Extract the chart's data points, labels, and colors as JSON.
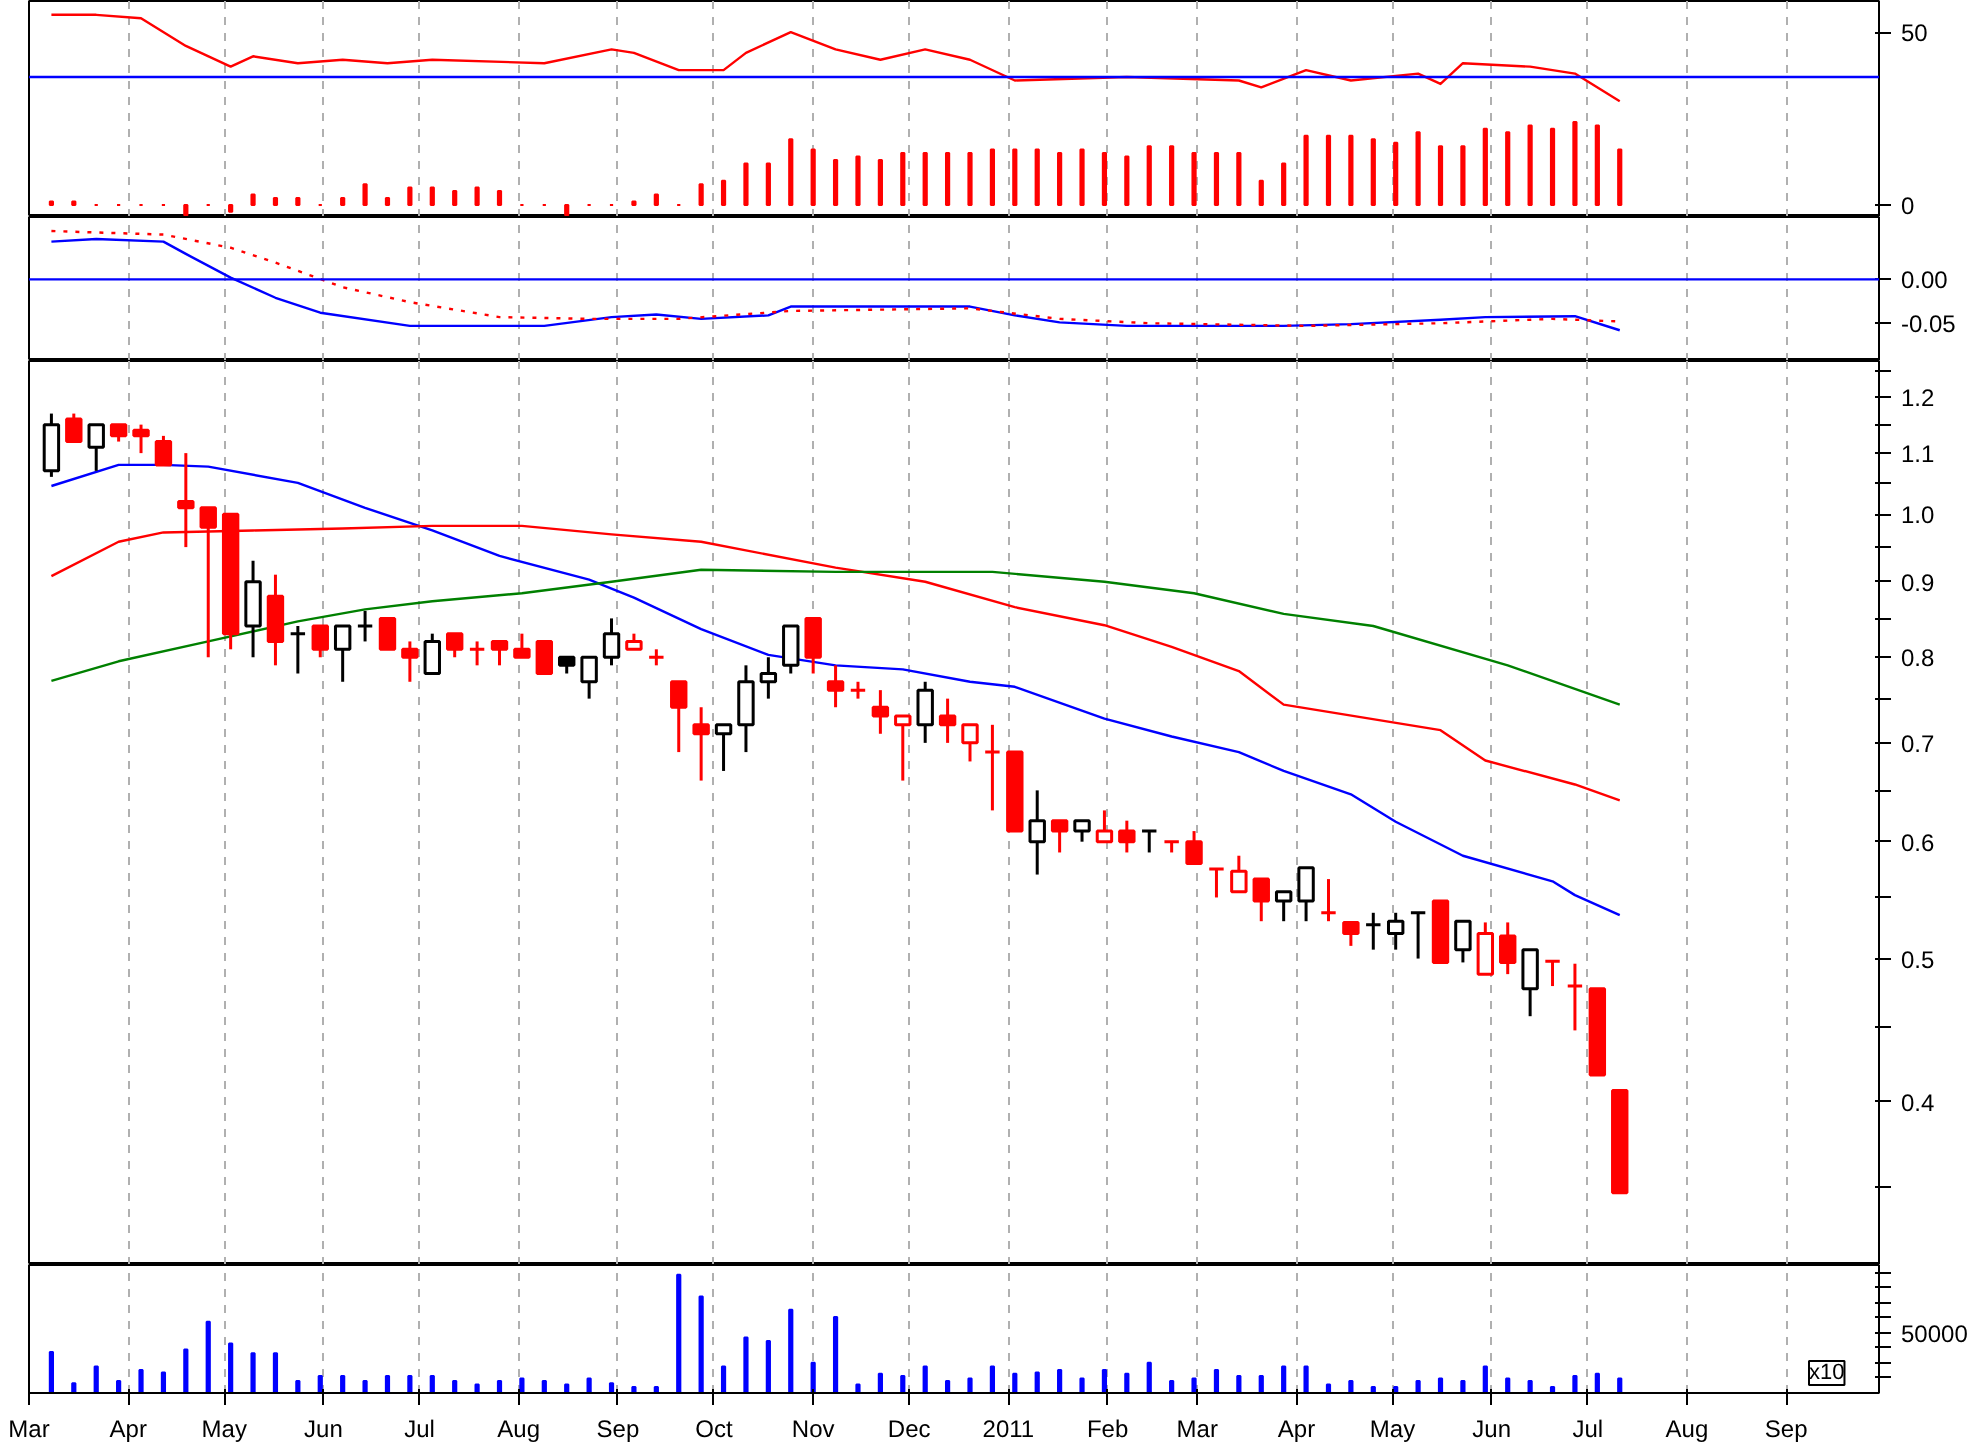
{
  "chart_data": [
    {
      "type": "bar",
      "x": [
        "2010-03-08",
        "2010-03-15",
        "2010-03-22",
        "2010-03-29",
        "2010-04-05",
        "2010-04-12",
        "2010-04-19",
        "2010-04-26",
        "2010-05-03",
        "2010-05-10",
        "2010-05-17",
        "2010-05-24",
        "2010-05-31",
        "2010-06-07",
        "2010-06-14",
        "2010-06-21",
        "2010-06-28",
        "2010-07-05",
        "2010-07-12",
        "2010-07-19",
        "2010-07-26",
        "2010-08-02",
        "2010-08-09",
        "2010-08-16",
        "2010-08-23",
        "2010-08-30",
        "2010-09-06",
        "2010-09-13",
        "2010-09-20",
        "2010-09-27",
        "2010-10-04",
        "2010-10-11",
        "2010-10-18",
        "2010-10-25",
        "2010-11-01",
        "2010-11-08",
        "2010-11-15",
        "2010-11-22",
        "2010-11-29",
        "2010-12-06",
        "2010-12-13",
        "2010-12-20",
        "2010-12-27",
        "2011-01-03",
        "2011-01-10",
        "2011-01-17",
        "2011-01-24",
        "2011-01-31",
        "2011-02-07",
        "2011-02-14",
        "2011-02-21",
        "2011-02-28",
        "2011-03-07",
        "2011-03-14",
        "2011-03-21",
        "2011-03-28",
        "2011-04-04",
        "2011-04-11",
        "2011-04-18",
        "2011-04-25",
        "2011-05-02",
        "2011-05-09",
        "2011-05-16",
        "2011-05-23",
        "2011-05-30",
        "2011-06-06",
        "2011-06-13",
        "2011-06-20",
        "2011-06-27",
        "2011-07-04",
        "2011-07-11"
      ],
      "series": [
        {
          "type": "bar",
          "color": "#ff0000",
          "values": [
            1,
            1,
            0,
            0,
            0,
            0,
            -3,
            0,
            -2,
            3,
            2,
            2,
            0,
            2,
            6,
            2,
            5,
            5,
            4,
            5,
            4,
            0,
            0,
            -3,
            0,
            0,
            1,
            3,
            0,
            6,
            7,
            12,
            12,
            19,
            16,
            13,
            14,
            13,
            15,
            15,
            15,
            15,
            16,
            16,
            16,
            15,
            16,
            15,
            14,
            17,
            17,
            15,
            15,
            15,
            7,
            12,
            20,
            20,
            20,
            19,
            18,
            21,
            17,
            17,
            22,
            21,
            23,
            22,
            24,
            23,
            16
          ]
        },
        {
          "type": "line",
          "color": "#ff0000",
          "x": [
            "2010-03-08",
            "2010-03-22",
            "2010-04-05",
            "2010-04-19",
            "2010-05-03",
            "2010-05-10",
            "2010-05-24",
            "2010-06-07",
            "2010-06-21",
            "2010-07-05",
            "2010-08-09",
            "2010-08-30",
            "2010-09-06",
            "2010-09-20",
            "2010-10-04",
            "2010-10-11",
            "2010-10-25",
            "2010-11-08",
            "2010-11-22",
            "2010-12-06",
            "2010-12-20",
            "2011-01-03",
            "2011-02-07",
            "2011-03-14",
            "2011-03-21",
            "2011-04-04",
            "2011-04-18",
            "2011-05-09",
            "2011-05-16",
            "2011-05-23",
            "2011-06-13",
            "2011-06-27",
            "2011-07-11"
          ],
          "values": [
            55,
            55,
            54,
            46,
            40,
            43,
            41,
            42,
            41,
            42,
            41,
            45,
            44,
            39,
            39,
            44,
            50,
            45,
            42,
            45,
            42,
            36,
            37,
            36,
            34,
            39,
            36,
            38,
            35,
            41,
            40,
            38,
            30
          ]
        }
      ],
      "ref_lines": [
        {
          "axis": "y",
          "value": 37,
          "color": "#0000ff"
        }
      ],
      "xlim": [
        "2010-03-01",
        "2011-09-30"
      ],
      "ylim": [
        -3.5,
        59
      ],
      "yticks": [
        0,
        50
      ],
      "xticks": [
        {
          "value": "2010-03-01",
          "label": null
        },
        {
          "value": "2010-04-01",
          "label": null
        },
        {
          "value": "2010-05-01",
          "label": null
        },
        {
          "value": "2010-06-01",
          "label": null
        },
        {
          "value": "2010-07-01",
          "label": null
        },
        {
          "value": "2010-08-01",
          "label": null
        },
        {
          "value": "2010-09-01",
          "label": null
        },
        {
          "value": "2010-10-01",
          "label": null
        },
        {
          "value": "2010-11-01",
          "label": null
        },
        {
          "value": "2010-12-01",
          "label": null
        },
        {
          "value": "2011-01-01",
          "label": null
        },
        {
          "value": "2011-02-01",
          "label": null
        },
        {
          "value": "2011-03-01",
          "label": null
        },
        {
          "value": "2011-04-01",
          "label": null
        },
        {
          "value": "2011-05-01",
          "label": null
        },
        {
          "value": "2011-06-01",
          "label": null
        },
        {
          "value": "2011-07-01",
          "label": null
        },
        {
          "value": "2011-08-01",
          "label": null
        },
        {
          "value": "2011-09-01",
          "label": null
        }
      ],
      "tick_labels": "y",
      "grid": "x"
    },
    {
      "type": "line",
      "series": [
        {
          "color": "#0000ff",
          "line_style": "solid",
          "x": [
            "2010-03-08",
            "2010-03-22",
            "2010-04-12",
            "2010-04-19",
            "2010-05-03",
            "2010-05-17",
            "2010-05-31",
            "2010-06-28",
            "2010-08-09",
            "2010-08-30",
            "2010-09-13",
            "2010-09-27",
            "2010-10-18",
            "2010-10-25",
            "2010-11-08",
            "2010-12-20",
            "2011-01-03",
            "2011-01-17",
            "2011-02-07",
            "2011-03-28",
            "2011-04-18",
            "2011-05-16",
            "2011-05-30",
            "2011-06-27",
            "2011-07-11"
          ],
          "values": [
            0.043,
            0.046,
            0.043,
            0.029,
            0.002,
            -0.021,
            -0.038,
            -0.053,
            -0.053,
            -0.043,
            -0.04,
            -0.045,
            -0.041,
            -0.031,
            -0.031,
            -0.031,
            -0.041,
            -0.049,
            -0.053,
            -0.053,
            -0.051,
            -0.046,
            -0.043,
            -0.042,
            -0.058
          ]
        },
        {
          "color": "#ff0000",
          "line_style": "dotted",
          "x": [
            "2010-03-08",
            "2010-04-12",
            "2010-05-03",
            "2010-05-17",
            "2010-06-07",
            "2010-06-28",
            "2010-07-26",
            "2010-08-23",
            "2010-09-20",
            "2010-10-25",
            "2010-12-20",
            "2011-01-17",
            "2011-02-14",
            "2011-04-04",
            "2011-05-16",
            "2011-06-20",
            "2011-07-11"
          ],
          "values": [
            0.055,
            0.051,
            0.036,
            0.019,
            -0.009,
            -0.026,
            -0.043,
            -0.045,
            -0.045,
            -0.036,
            -0.033,
            -0.045,
            -0.05,
            -0.053,
            -0.05,
            -0.045,
            -0.048
          ]
        }
      ],
      "ref_lines": [
        {
          "axis": "y",
          "value": 0,
          "color": "#0000ff"
        }
      ],
      "xlim": [
        "2010-03-01",
        "2011-09-30"
      ],
      "ylim": [
        -0.093,
        0.071
      ],
      "yticks": [
        {
          "value": 0,
          "label": "0.00"
        },
        {
          "value": -0.05,
          "label": "-0.05"
        }
      ],
      "xticks": [
        {
          "value": "2010-03-01",
          "label": null
        },
        {
          "value": "2010-04-01",
          "label": null
        },
        {
          "value": "2010-05-01",
          "label": null
        },
        {
          "value": "2010-06-01",
          "label": null
        },
        {
          "value": "2010-07-01",
          "label": null
        },
        {
          "value": "2010-08-01",
          "label": null
        },
        {
          "value": "2010-09-01",
          "label": null
        },
        {
          "value": "2010-10-01",
          "label": null
        },
        {
          "value": "2010-11-01",
          "label": null
        },
        {
          "value": "2010-12-01",
          "label": null
        },
        {
          "value": "2011-01-01",
          "label": null
        },
        {
          "value": "2011-02-01",
          "label": null
        },
        {
          "value": "2011-03-01",
          "label": null
        },
        {
          "value": "2011-04-01",
          "label": null
        },
        {
          "value": "2011-05-01",
          "label": null
        },
        {
          "value": "2011-06-01",
          "label": null
        },
        {
          "value": "2011-07-01",
          "label": null
        },
        {
          "value": "2011-08-01",
          "label": null
        },
        {
          "value": "2011-09-01",
          "label": null
        }
      ],
      "tick_labels": "y",
      "grid": "x"
    },
    {
      "type": "candlestick",
      "x": [
        "2010-03-08",
        "2010-03-15",
        "2010-03-22",
        "2010-03-29",
        "2010-04-05",
        "2010-04-12",
        "2010-04-19",
        "2010-04-26",
        "2010-05-03",
        "2010-05-10",
        "2010-05-17",
        "2010-05-24",
        "2010-05-31",
        "2010-06-07",
        "2010-06-14",
        "2010-06-21",
        "2010-06-28",
        "2010-07-05",
        "2010-07-12",
        "2010-07-19",
        "2010-07-26",
        "2010-08-02",
        "2010-08-09",
        "2010-08-16",
        "2010-08-23",
        "2010-08-30",
        "2010-09-06",
        "2010-09-13",
        "2010-09-20",
        "2010-09-27",
        "2010-10-04",
        "2010-10-11",
        "2010-10-18",
        "2010-10-25",
        "2010-11-01",
        "2010-11-08",
        "2010-11-15",
        "2010-11-22",
        "2010-11-29",
        "2010-12-06",
        "2010-12-13",
        "2010-12-20",
        "2010-12-27",
        "2011-01-03",
        "2011-01-10",
        "2011-01-17",
        "2011-01-24",
        "2011-01-31",
        "2011-02-07",
        "2011-02-14",
        "2011-02-21",
        "2011-02-28",
        "2011-03-07",
        "2011-03-14",
        "2011-03-21",
        "2011-03-28",
        "2011-04-04",
        "2011-04-11",
        "2011-04-18",
        "2011-04-25",
        "2011-05-02",
        "2011-05-09",
        "2011-05-16",
        "2011-05-23",
        "2011-05-30",
        "2011-06-06",
        "2011-06-13",
        "2011-06-20",
        "2011-06-27",
        "2011-07-04",
        "2011-07-11"
      ],
      "ohlc": [
        [
          1.07,
          1.17,
          1.06,
          1.15
        ],
        [
          1.16,
          1.17,
          1.12,
          1.12
        ],
        [
          1.11,
          1.15,
          1.07,
          1.15
        ],
        [
          1.15,
          1.15,
          1.12,
          1.13
        ],
        [
          1.14,
          1.15,
          1.1,
          1.13
        ],
        [
          1.12,
          1.13,
          1.08,
          1.08
        ],
        [
          1.02,
          1.1,
          0.95,
          1.01
        ],
        [
          1.01,
          1.01,
          0.8,
          0.98
        ],
        [
          1.0,
          1.0,
          0.81,
          0.83
        ],
        [
          0.84,
          0.93,
          0.8,
          0.9
        ],
        [
          0.88,
          0.91,
          0.79,
          0.82
        ],
        [
          0.83,
          0.84,
          0.78,
          0.83
        ],
        [
          0.84,
          0.84,
          0.8,
          0.81
        ],
        [
          0.81,
          0.84,
          0.77,
          0.84
        ],
        [
          0.84,
          0.86,
          0.82,
          0.84
        ],
        [
          0.85,
          0.85,
          0.81,
          0.81
        ],
        [
          0.81,
          0.82,
          0.77,
          0.8
        ],
        [
          0.78,
          0.83,
          0.78,
          0.82
        ],
        [
          0.83,
          0.83,
          0.8,
          0.81
        ],
        [
          0.81,
          0.82,
          0.79,
          0.81
        ],
        [
          0.82,
          0.82,
          0.79,
          0.81
        ],
        [
          0.81,
          0.83,
          0.8,
          0.8
        ],
        [
          0.82,
          0.82,
          0.78,
          0.78
        ],
        [
          0.8,
          0.8,
          0.78,
          0.79
        ],
        [
          0.77,
          0.8,
          0.75,
          0.8
        ],
        [
          0.8,
          0.85,
          0.79,
          0.83
        ],
        [
          0.81,
          0.83,
          0.81,
          0.82
        ],
        [
          0.8,
          0.81,
          0.79,
          0.8
        ],
        [
          0.77,
          0.77,
          0.69,
          0.74
        ],
        [
          0.72,
          0.74,
          0.66,
          0.71
        ],
        [
          0.71,
          0.72,
          0.67,
          0.72
        ],
        [
          0.72,
          0.79,
          0.69,
          0.77
        ],
        [
          0.77,
          0.8,
          0.75,
          0.78
        ],
        [
          0.79,
          0.84,
          0.78,
          0.84
        ],
        [
          0.85,
          0.85,
          0.78,
          0.8
        ],
        [
          0.77,
          0.79,
          0.74,
          0.76
        ],
        [
          0.76,
          0.77,
          0.75,
          0.76
        ],
        [
          0.74,
          0.76,
          0.71,
          0.73
        ],
        [
          0.72,
          0.73,
          0.66,
          0.73
        ],
        [
          0.72,
          0.77,
          0.7,
          0.76
        ],
        [
          0.73,
          0.75,
          0.7,
          0.72
        ],
        [
          0.7,
          0.72,
          0.68,
          0.72
        ],
        [
          0.69,
          0.72,
          0.63,
          0.69
        ],
        [
          0.69,
          0.69,
          0.61,
          0.61
        ],
        [
          0.6,
          0.65,
          0.57,
          0.62
        ],
        [
          0.62,
          0.62,
          0.59,
          0.61
        ],
        [
          0.61,
          0.62,
          0.6,
          0.62
        ],
        [
          0.6,
          0.63,
          0.6,
          0.61
        ],
        [
          0.61,
          0.62,
          0.59,
          0.6
        ],
        [
          0.61,
          0.61,
          0.59,
          0.61
        ],
        [
          0.6,
          0.6,
          0.59,
          0.6
        ],
        [
          0.6,
          0.61,
          0.58,
          0.58
        ],
        [
          0.575,
          0.575,
          0.55,
          0.575
        ],
        [
          0.555,
          0.587,
          0.555,
          0.573
        ],
        [
          0.566,
          0.566,
          0.53,
          0.547
        ],
        [
          0.547,
          0.555,
          0.53,
          0.555
        ],
        [
          0.547,
          0.576,
          0.53,
          0.576
        ],
        [
          0.537,
          0.566,
          0.53,
          0.537
        ],
        [
          0.529,
          0.529,
          0.51,
          0.52
        ],
        [
          0.527,
          0.537,
          0.507,
          0.527
        ],
        [
          0.52,
          0.537,
          0.507,
          0.53
        ],
        [
          0.537,
          0.537,
          0.5,
          0.537
        ],
        [
          0.547,
          0.547,
          0.497,
          0.497
        ],
        [
          0.507,
          0.53,
          0.497,
          0.53
        ],
        [
          0.488,
          0.529,
          0.488,
          0.52
        ],
        [
          0.518,
          0.529,
          0.488,
          0.497
        ],
        [
          0.477,
          0.507,
          0.457,
          0.507
        ],
        [
          0.498,
          0.498,
          0.479,
          0.498
        ],
        [
          0.479,
          0.496,
          0.447,
          0.479
        ],
        [
          0.477,
          0.477,
          0.417,
          0.417
        ],
        [
          0.407,
          0.407,
          0.347,
          0.347
        ]
      ],
      "colors": [
        "#000000",
        "#ff0000",
        "#000000",
        "#ff0000",
        "#ff0000",
        "#ff0000",
        "#ff0000",
        "#ff0000",
        "#ff0000",
        "#000000",
        "#ff0000",
        "#000000",
        "#ff0000",
        "#000000",
        "#000000",
        "#ff0000",
        "#ff0000",
        "#000000",
        "#ff0000",
        "#ff0000",
        "#ff0000",
        "#ff0000",
        "#ff0000",
        "#000000",
        "#000000",
        "#000000",
        "#ff0000",
        "#ff0000",
        "#ff0000",
        "#ff0000",
        "#000000",
        "#000000",
        "#000000",
        "#000000",
        "#ff0000",
        "#ff0000",
        "#ff0000",
        "#ff0000",
        "#ff0000",
        "#000000",
        "#ff0000",
        "#ff0000",
        "#ff0000",
        "#ff0000",
        "#000000",
        "#ff0000",
        "#000000",
        "#ff0000",
        "#ff0000",
        "#000000",
        "#ff0000",
        "#ff0000",
        "#ff0000",
        "#ff0000",
        "#ff0000",
        "#000000",
        "#000000",
        "#ff0000",
        "#ff0000",
        "#000000",
        "#000000",
        "#000000",
        "#ff0000",
        "#000000",
        "#ff0000",
        "#ff0000",
        "#000000",
        "#ff0000",
        "#ff0000",
        "#ff0000",
        "#ff0000"
      ],
      "series": [
        {
          "type": "line",
          "color": "#0000ff",
          "x": [
            "2010-03-08",
            "2010-03-29",
            "2010-04-12",
            "2010-04-26",
            "2010-05-24",
            "2010-06-14",
            "2010-07-05",
            "2010-07-26",
            "2010-08-23",
            "2010-09-06",
            "2010-09-27",
            "2010-10-18",
            "2010-11-08",
            "2010-11-29",
            "2010-12-20",
            "2011-01-03",
            "2011-01-31",
            "2011-02-21",
            "2011-03-14",
            "2011-03-28",
            "2011-04-18",
            "2011-05-02",
            "2011-05-23",
            "2011-06-20",
            "2011-06-27",
            "2011-07-11"
          ],
          "values": [
            1.045,
            1.08,
            1.08,
            1.077,
            1.05,
            1.01,
            0.975,
            0.937,
            0.903,
            0.878,
            0.836,
            0.803,
            0.79,
            0.785,
            0.77,
            0.764,
            0.727,
            0.707,
            0.69,
            0.67,
            0.646,
            0.619,
            0.587,
            0.564,
            0.552,
            0.535
          ]
        },
        {
          "type": "line",
          "color": "#ff0000",
          "x": [
            "2010-03-08",
            "2010-03-29",
            "2010-04-12",
            "2010-05-10",
            "2010-06-07",
            "2010-07-05",
            "2010-08-02",
            "2010-08-30",
            "2010-09-27",
            "2010-11-08",
            "2010-12-06",
            "2011-01-03",
            "2011-01-31",
            "2011-02-21",
            "2011-03-14",
            "2011-03-28",
            "2011-05-16",
            "2011-05-30",
            "2011-06-27",
            "2011-07-11"
          ],
          "values": [
            0.908,
            0.958,
            0.972,
            0.975,
            0.978,
            0.982,
            0.982,
            0.969,
            0.958,
            0.92,
            0.9,
            0.865,
            0.841,
            0.813,
            0.783,
            0.743,
            0.714,
            0.681,
            0.656,
            0.64
          ]
        },
        {
          "type": "line",
          "color": "#008000",
          "x": [
            "2010-03-08",
            "2010-03-29",
            "2010-04-26",
            "2010-05-24",
            "2010-06-14",
            "2010-07-05",
            "2010-08-02",
            "2010-08-30",
            "2010-09-27",
            "2010-11-08",
            "2010-12-27",
            "2011-01-31",
            "2011-02-28",
            "2011-03-28",
            "2011-04-25",
            "2011-06-06",
            "2011-07-11"
          ],
          "values": [
            0.771,
            0.795,
            0.82,
            0.846,
            0.862,
            0.873,
            0.884,
            0.9,
            0.917,
            0.914,
            0.914,
            0.9,
            0.884,
            0.856,
            0.84,
            0.79,
            0.743
          ]
        }
      ],
      "log": true,
      "xlim": [
        "2010-03-01",
        "2011-09-30"
      ],
      "ylim": [
        0.31,
        1.27
      ],
      "yticks": [
        {
          "value": 0.35,
          "label": null
        },
        0.4,
        {
          "value": 0.45,
          "label": null
        },
        0.5,
        {
          "value": 0.55,
          "label": null
        },
        0.6,
        {
          "value": 0.65,
          "label": null
        },
        0.7,
        {
          "value": 0.75,
          "label": null
        },
        0.8,
        {
          "value": 0.85,
          "label": null
        },
        0.9,
        {
          "value": 0.95,
          "label": null
        },
        {
          "value": 1,
          "label": "1.0"
        },
        {
          "value": 1.05,
          "label": null
        },
        1.1,
        {
          "value": 1.15,
          "label": null
        },
        1.2,
        {
          "value": 1.25,
          "label": null
        }
      ],
      "xticks": [
        {
          "value": "2010-03-01",
          "label": null
        },
        {
          "value": "2010-04-01",
          "label": null
        },
        {
          "value": "2010-05-01",
          "label": null
        },
        {
          "value": "2010-06-01",
          "label": null
        },
        {
          "value": "2010-07-01",
          "label": null
        },
        {
          "value": "2010-08-01",
          "label": null
        },
        {
          "value": "2010-09-01",
          "label": null
        },
        {
          "value": "2010-10-01",
          "label": null
        },
        {
          "value": "2010-11-01",
          "label": null
        },
        {
          "value": "2010-12-01",
          "label": null
        },
        {
          "value": "2011-01-01",
          "label": null
        },
        {
          "value": "2011-02-01",
          "label": null
        },
        {
          "value": "2011-03-01",
          "label": null
        },
        {
          "value": "2011-04-01",
          "label": null
        },
        {
          "value": "2011-05-01",
          "label": null
        },
        {
          "value": "2011-06-01",
          "label": null
        },
        {
          "value": "2011-07-01",
          "label": null
        },
        {
          "value": "2011-08-01",
          "label": null
        },
        {
          "value": "2011-09-01",
          "label": null
        }
      ],
      "tick_labels": "y",
      "grid": "x"
    },
    {
      "type": "bar",
      "color": "#0000ff",
      "x": [
        "2010-03-08",
        "2010-03-15",
        "2010-03-22",
        "2010-03-29",
        "2010-04-05",
        "2010-04-12",
        "2010-04-19",
        "2010-04-26",
        "2010-05-03",
        "2010-05-10",
        "2010-05-17",
        "2010-05-24",
        "2010-05-31",
        "2010-06-07",
        "2010-06-14",
        "2010-06-21",
        "2010-06-28",
        "2010-07-05",
        "2010-07-12",
        "2010-07-19",
        "2010-07-26",
        "2010-08-02",
        "2010-08-09",
        "2010-08-16",
        "2010-08-23",
        "2010-08-30",
        "2010-09-06",
        "2010-09-13",
        "2010-09-20",
        "2010-09-27",
        "2010-10-04",
        "2010-10-11",
        "2010-10-18",
        "2010-10-25",
        "2010-11-01",
        "2010-11-08",
        "2010-11-15",
        "2010-11-22",
        "2010-11-29",
        "2010-12-06",
        "2010-12-13",
        "2010-12-20",
        "2010-12-27",
        "2011-01-03",
        "2011-01-10",
        "2011-01-17",
        "2011-01-24",
        "2011-01-31",
        "2011-02-07",
        "2011-02-14",
        "2011-02-21",
        "2011-02-28",
        "2011-03-07",
        "2011-03-14",
        "2011-03-21",
        "2011-03-28",
        "2011-04-04",
        "2011-04-11",
        "2011-04-18",
        "2011-04-25",
        "2011-05-02",
        "2011-05-09",
        "2011-05-16",
        "2011-05-23",
        "2011-05-30",
        "2011-06-06",
        "2011-06-13",
        "2011-06-20",
        "2011-06-27",
        "2011-07-04",
        "2011-07-11"
      ],
      "values": [
        34000,
        8000,
        22000,
        10000,
        19000,
        17000,
        36000,
        59000,
        41000,
        33000,
        33000,
        10000,
        14000,
        14000,
        10000,
        14000,
        14000,
        14000,
        10000,
        7000,
        10000,
        12000,
        10000,
        7000,
        12000,
        8000,
        5000,
        5000,
        98000,
        80000,
        22000,
        46000,
        43000,
        69000,
        25000,
        63000,
        7000,
        16000,
        14000,
        22000,
        10000,
        12000,
        22000,
        16000,
        17000,
        19000,
        12000,
        19000,
        16000,
        25000,
        10000,
        12000,
        19000,
        14000,
        14000,
        22000,
        22000,
        7000,
        10000,
        5000,
        5000,
        10000,
        12000,
        10000,
        22000,
        12000,
        10000,
        5000,
        14000,
        16000,
        12000
      ],
      "annotations": [
        "x10"
      ],
      "xlim": [
        "2010-03-01",
        "2011-09-30"
      ],
      "ylim": [
        0,
        106000
      ],
      "yticks": [
        {
          "value": 12500,
          "label": null
        },
        {
          "value": 25000,
          "label": null
        },
        {
          "value": 37500,
          "label": null
        },
        50000,
        {
          "value": 62500,
          "label": null
        },
        {
          "value": 75000,
          "label": null
        },
        {
          "value": 87500,
          "label": null
        },
        {
          "value": 100000,
          "label": null
        }
      ],
      "xticks": [
        {
          "value": "2010-03-01",
          "label": "Mar"
        },
        {
          "value": "2010-04-01",
          "label": "Apr"
        },
        {
          "value": "2010-05-01",
          "label": "May"
        },
        {
          "value": "2010-06-01",
          "label": "Jun"
        },
        {
          "value": "2010-07-01",
          "label": "Jul"
        },
        {
          "value": "2010-08-01",
          "label": "Aug"
        },
        {
          "value": "2010-09-01",
          "label": "Sep"
        },
        {
          "value": "2010-10-01",
          "label": "Oct"
        },
        {
          "value": "2010-11-01",
          "label": "Nov"
        },
        {
          "value": "2010-12-01",
          "label": "Dec"
        },
        {
          "value": "2011-01-01",
          "label": "2011"
        },
        {
          "value": "2011-02-01",
          "label": "Feb"
        },
        {
          "value": "2011-03-01",
          "label": "Mar"
        },
        {
          "value": "2011-04-01",
          "label": "Apr"
        },
        {
          "value": "2011-05-01",
          "label": "May"
        },
        {
          "value": "2011-06-01",
          "label": "Jun"
        },
        {
          "value": "2011-07-01",
          "label": "Jul"
        },
        {
          "value": "2011-08-01",
          "label": "Aug"
        },
        {
          "value": "2011-09-01",
          "label": "Sep"
        }
      ],
      "grid": "x"
    }
  ]
}
